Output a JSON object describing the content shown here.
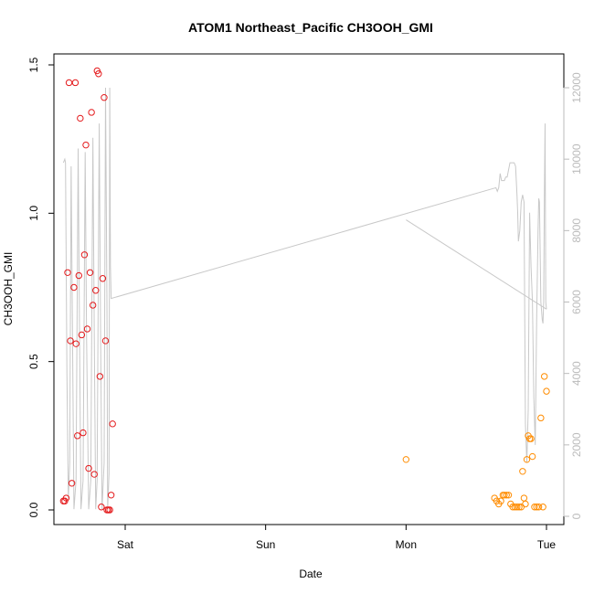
{
  "chart_data": {
    "type": "scatter",
    "title": "ATOM1 Northeast_Pacific CH3OOH_GMI",
    "xlabel": "Date",
    "ylabel": "CH3OOH_GMI",
    "x_unit": "days since Friday 00:00",
    "x_ticks": [
      {
        "value": 1,
        "label": "Sat"
      },
      {
        "value": 2,
        "label": "Sun"
      },
      {
        "value": 3,
        "label": "Mon"
      },
      {
        "value": 4,
        "label": "Tue"
      }
    ],
    "ylim": [
      0,
      1.5
    ],
    "y_ticks": [
      0.0,
      0.5,
      1.0,
      1.5
    ],
    "y_tick_labels": [
      "0.0",
      "0.5",
      "1.0",
      "1.5"
    ],
    "y2lim": [
      0,
      12000
    ],
    "y2_ticks": [
      0,
      2000,
      4000,
      6000,
      8000,
      10000,
      12000
    ],
    "y2_tick_labels": [
      "0",
      "2000",
      "4000",
      "6000",
      "8000",
      "10000",
      "12000"
    ],
    "grid": false,
    "colors": {
      "series1": "#e41a1c",
      "series2": "#ff8c00",
      "altitude": "#c8c8c8",
      "axis": "#000000",
      "right_axis": "#bbbbbb"
    },
    "series": [
      {
        "color": "#e41a1c",
        "points": [
          [
            0.56,
            0.03
          ],
          [
            0.57,
            0.03
          ],
          [
            0.58,
            0.04
          ],
          [
            0.59,
            0.8
          ],
          [
            0.6,
            1.44
          ],
          [
            0.61,
            0.57
          ],
          [
            0.62,
            0.09
          ],
          [
            0.635,
            0.75
          ],
          [
            0.645,
            1.44
          ],
          [
            0.65,
            0.56
          ],
          [
            0.66,
            0.25
          ],
          [
            0.67,
            0.79
          ],
          [
            0.68,
            1.32
          ],
          [
            0.69,
            0.59
          ],
          [
            0.7,
            0.26
          ],
          [
            0.71,
            0.86
          ],
          [
            0.72,
            1.23
          ],
          [
            0.73,
            0.61
          ],
          [
            0.74,
            0.14
          ],
          [
            0.75,
            0.8
          ],
          [
            0.76,
            1.34
          ],
          [
            0.77,
            0.69
          ],
          [
            0.78,
            0.12
          ],
          [
            0.79,
            0.74
          ],
          [
            0.8,
            1.48
          ],
          [
            0.81,
            1.47
          ],
          [
            0.82,
            0.45
          ],
          [
            0.83,
            0.01
          ],
          [
            0.84,
            0.78
          ],
          [
            0.85,
            1.39
          ],
          [
            0.86,
            0.57
          ],
          [
            0.87,
            0.0
          ],
          [
            0.88,
            0.0
          ],
          [
            0.89,
            0.0
          ],
          [
            0.9,
            0.05
          ],
          [
            0.91,
            0.29
          ]
        ]
      },
      {
        "color": "#ff8c00",
        "points": [
          [
            3.0,
            0.17
          ],
          [
            3.63,
            0.04
          ],
          [
            3.645,
            0.03
          ],
          [
            3.66,
            0.02
          ],
          [
            3.675,
            0.03
          ],
          [
            3.69,
            0.05
          ],
          [
            3.7,
            0.05
          ],
          [
            3.715,
            0.05
          ],
          [
            3.73,
            0.05
          ],
          [
            3.745,
            0.02
          ],
          [
            3.76,
            0.01
          ],
          [
            3.775,
            0.01
          ],
          [
            3.79,
            0.01
          ],
          [
            3.805,
            0.01
          ],
          [
            3.82,
            0.01
          ],
          [
            3.83,
            0.13
          ],
          [
            3.84,
            0.04
          ],
          [
            3.85,
            0.02
          ],
          [
            3.86,
            0.17
          ],
          [
            3.87,
            0.25
          ],
          [
            3.88,
            0.24
          ],
          [
            3.89,
            0.24
          ],
          [
            3.9,
            0.18
          ],
          [
            3.915,
            0.01
          ],
          [
            3.93,
            0.01
          ],
          [
            3.945,
            0.01
          ],
          [
            3.96,
            0.31
          ],
          [
            3.975,
            0.01
          ],
          [
            3.985,
            0.45
          ],
          [
            4.0,
            0.4
          ]
        ]
      }
    ],
    "altitude_line": {
      "color": "#c8c8c8",
      "points": [
        [
          0.56,
          9900
        ],
        [
          0.57,
          10000
        ],
        [
          0.575,
          9900
        ],
        [
          0.585,
          4000
        ],
        [
          0.595,
          500
        ],
        [
          0.605,
          1500
        ],
        [
          0.615,
          9800
        ],
        [
          0.625,
          5000
        ],
        [
          0.635,
          200
        ],
        [
          0.65,
          1000
        ],
        [
          0.665,
          10300
        ],
        [
          0.675,
          5000
        ],
        [
          0.685,
          200
        ],
        [
          0.7,
          1000
        ],
        [
          0.715,
          10200
        ],
        [
          0.725,
          5000
        ],
        [
          0.74,
          200
        ],
        [
          0.755,
          1000
        ],
        [
          0.77,
          10600
        ],
        [
          0.78,
          5000
        ],
        [
          0.79,
          200
        ],
        [
          0.8,
          1000
        ],
        [
          0.815,
          11000
        ],
        [
          0.825,
          5000
        ],
        [
          0.835,
          200
        ],
        [
          0.85,
          1500
        ],
        [
          0.86,
          12000
        ],
        [
          0.87,
          6000
        ],
        [
          0.875,
          200
        ],
        [
          0.885,
          1200
        ],
        [
          0.89,
          12000
        ],
        [
          0.895,
          7000
        ],
        [
          0.9,
          6100
        ],
        [
          3.64,
          9200
        ],
        [
          3.65,
          9100
        ],
        [
          3.66,
          9200
        ],
        [
          3.67,
          9600
        ],
        [
          3.68,
          9400
        ],
        [
          3.69,
          9400
        ],
        [
          3.7,
          9400
        ],
        [
          3.71,
          9500
        ],
        [
          3.72,
          9500
        ],
        [
          3.73,
          9700
        ],
        [
          3.74,
          9900
        ],
        [
          3.75,
          9900
        ],
        [
          3.77,
          9900
        ],
        [
          3.78,
          9800
        ],
        [
          3.79,
          9000
        ],
        [
          3.795,
          8500
        ],
        [
          3.8,
          7700
        ],
        [
          3.81,
          8000
        ],
        [
          3.82,
          8800
        ],
        [
          3.83,
          9000
        ],
        [
          3.84,
          8800
        ],
        [
          3.85,
          2600
        ],
        [
          3.86,
          1500
        ],
        [
          3.87,
          3000
        ],
        [
          3.88,
          8500
        ],
        [
          3.89,
          7000
        ],
        [
          3.9,
          6000
        ],
        [
          3.91,
          3300
        ],
        [
          3.92,
          2000
        ],
        [
          3.93,
          5500
        ],
        [
          3.94,
          8000
        ],
        [
          3.945,
          8900
        ],
        [
          3.95,
          8800
        ],
        [
          3.96,
          6000
        ],
        [
          3.97,
          5500
        ],
        [
          3.975,
          5400
        ],
        [
          3.98,
          6000
        ],
        [
          3.985,
          9000
        ],
        [
          3.99,
          11000
        ],
        [
          3.995,
          6000
        ],
        [
          4.0,
          5800
        ],
        [
          3.0,
          8300
        ]
      ]
    }
  }
}
